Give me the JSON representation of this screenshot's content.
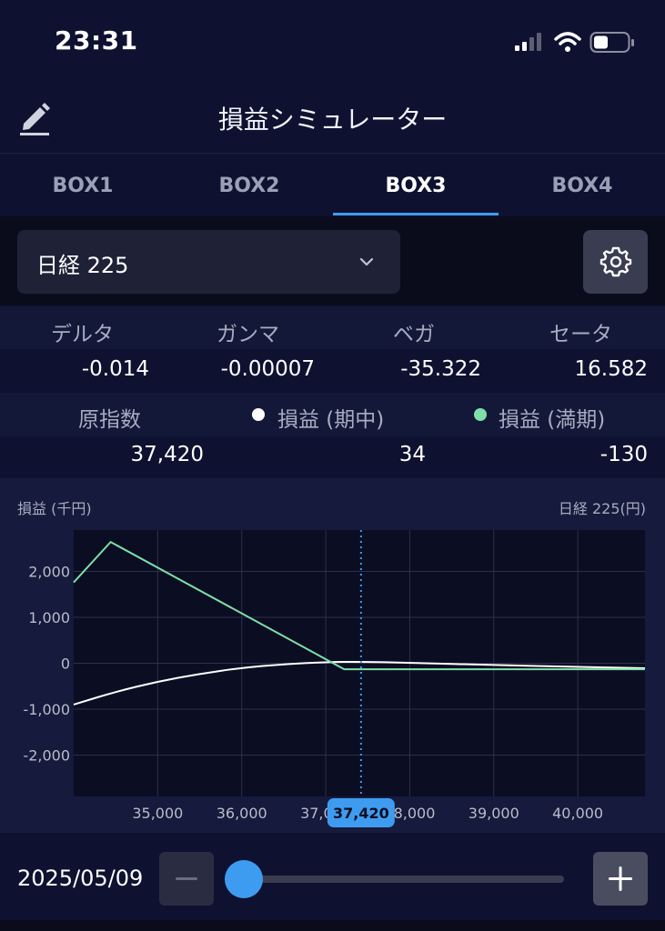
{
  "status_bar": {
    "time": "23:31"
  },
  "header": {
    "title": "損益シミュレーター"
  },
  "tabs": [
    {
      "label": "BOX1",
      "active": false
    },
    {
      "label": "BOX2",
      "active": false
    },
    {
      "label": "BOX3",
      "active": true
    },
    {
      "label": "BOX4",
      "active": false
    }
  ],
  "selector": {
    "value": "日経 225"
  },
  "greeks": {
    "labels": [
      "デルタ",
      "ガンマ",
      "ベガ",
      "セータ"
    ],
    "values": [
      "-0.014",
      "-0.00007",
      "-35.322",
      "16.582"
    ]
  },
  "underlying": {
    "labels": [
      "原指数",
      "損益 (期中)",
      "損益 (満期)"
    ],
    "values": [
      "37,420",
      "34",
      "-130"
    ]
  },
  "colors": {
    "accent": "#3e9cf0",
    "pl_midterm": "#ffffff",
    "pl_expiry": "#7ee0a8"
  },
  "chart_data": {
    "type": "line",
    "ylabel": "損益 (千円)",
    "xlabel": "日経 225(円)",
    "xlim": [
      34000,
      40800
    ],
    "ylim": [
      -2900,
      2900
    ],
    "x_ticks": [
      "35,000",
      "36,000",
      "37,000",
      "38,000",
      "39,000",
      "40,000"
    ],
    "x_tick_values": [
      35000,
      36000,
      37000,
      38000,
      39000,
      40000
    ],
    "y_ticks": [
      "2,000",
      "1,000",
      "0",
      "-1,000",
      "-2,000"
    ],
    "y_tick_values": [
      2000,
      1000,
      0,
      -1000,
      -2000
    ],
    "current_value": 37420,
    "current_label": "37,420",
    "series": [
      {
        "name": "損益 (期中)",
        "x": [
          34000,
          34500,
          35000,
          35500,
          36000,
          36500,
          37000,
          37420,
          38000,
          39000,
          40000,
          40800
        ],
        "y": [
          -900,
          -620,
          -400,
          -230,
          -100,
          -20,
          25,
          34,
          10,
          -40,
          -80,
          -110
        ]
      },
      {
        "name": "損益 (満期)",
        "x": [
          34000,
          34440,
          37220,
          40800
        ],
        "y": [
          1760,
          2640,
          -130,
          -130
        ]
      }
    ]
  },
  "bottom": {
    "date": "2025/05/09",
    "slider_value": 0
  }
}
